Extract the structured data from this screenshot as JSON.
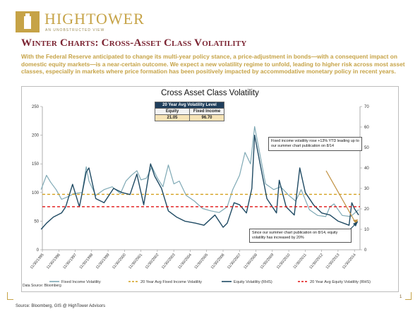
{
  "brand": {
    "name": "HIGHTOWER",
    "tagline": "AN UNOBSTRUCTED VIEW"
  },
  "page_title": "Winter Charts: Cross-Asset Class Volatility",
  "intro_text": "With the Federal Reserve anticipated to change its multi-year policy stance, a price-adjustment in bonds—with a consequent impact on domestic equity markets—is a near-certain outcome. We expect a new volatility regime to unfold, leading to higher risk across most asset classes, especially in markets where price formation has been positively impacted by accommodative monetary policy in recent years.",
  "volatility_table": {
    "header": "20 Year Avg Volatility Level",
    "col1": "Equity",
    "col2": "Fixed Income",
    "val1": "21.05",
    "val2": "96.70"
  },
  "annotations": {
    "fixed_income_note": "Fixed income volatility rose +13% YTD leading up to our summer chart publication on 8/14",
    "equity_note": "Since our summer chart publication on 8/14, equity volatility has increased by 20%"
  },
  "data_source": "Data Source: Bloomberg",
  "footer_source": "Source: Bloomberg, GIS @ HighTower Advisors",
  "page_number": "1",
  "colors": {
    "gold": "#c6a347",
    "burgundy": "#7a2230",
    "fixed_income": "#7fa9b5",
    "equity": "#1f4a63",
    "fi_avg": "#d4a01e",
    "eq_avg": "#e01010"
  },
  "chart_data": {
    "type": "line",
    "title": "Cross Asset Class Volatility",
    "x": [
      "11/30/1995",
      "11/30/1996",
      "11/30/1997",
      "11/30/1998",
      "11/30/1999",
      "11/30/2000",
      "11/30/2001",
      "11/30/2002",
      "11/30/2003",
      "11/30/2004",
      "11/30/2005",
      "11/30/2006",
      "11/30/2007",
      "11/30/2008",
      "11/30/2009",
      "11/30/2010",
      "11/30/2011",
      "11/30/2012",
      "11/30/2013",
      "11/30/2014"
    ],
    "x_extent": [
      "1995-11-30",
      "2015-03-31"
    ],
    "y_left": {
      "ticks": [
        0,
        50,
        100,
        150,
        200,
        250
      ],
      "range": [
        0,
        250
      ]
    },
    "y_right": {
      "ticks": [
        0,
        10,
        20,
        30,
        40,
        50,
        60,
        70
      ],
      "range": [
        0,
        70
      ]
    },
    "grid": false,
    "legend_position": "bottom",
    "series": [
      {
        "name": "Fixed Income Volatility",
        "axis": "left",
        "style": "solid",
        "points": [
          [
            "1995-11",
            105
          ],
          [
            "1996-03",
            130
          ],
          [
            "1996-06",
            118
          ],
          [
            "1996-10",
            105
          ],
          [
            "1997-02",
            88
          ],
          [
            "1997-06",
            92
          ],
          [
            "1997-11",
            98
          ],
          [
            "1998-05",
            100
          ],
          [
            "1998-08",
            145
          ],
          [
            "1998-10",
            120
          ],
          [
            "1999-03",
            95
          ],
          [
            "1999-09",
            105
          ],
          [
            "2000-03",
            110
          ],
          [
            "2000-09",
            98
          ],
          [
            "2001-01",
            120
          ],
          [
            "2001-05",
            130
          ],
          [
            "2001-09",
            138
          ],
          [
            "2001-12",
            122
          ],
          [
            "2002-04",
            125
          ],
          [
            "2002-08",
            145
          ],
          [
            "2002-12",
            125
          ],
          [
            "2003-04",
            110
          ],
          [
            "2003-08",
            148
          ],
          [
            "2003-12",
            115
          ],
          [
            "2004-04",
            120
          ],
          [
            "2004-09",
            95
          ],
          [
            "2005-03",
            85
          ],
          [
            "2005-09",
            72
          ],
          [
            "2006-03",
            68
          ],
          [
            "2006-09",
            65
          ],
          [
            "2007-03",
            75
          ],
          [
            "2007-07",
            105
          ],
          [
            "2007-12",
            130
          ],
          [
            "2008-04",
            170
          ],
          [
            "2008-08",
            150
          ],
          [
            "2008-11",
            215
          ],
          [
            "2009-03",
            165
          ],
          [
            "2009-07",
            115
          ],
          [
            "2010-01",
            105
          ],
          [
            "2010-06",
            110
          ],
          [
            "2010-12",
            95
          ],
          [
            "2011-05",
            85
          ],
          [
            "2011-09",
            105
          ],
          [
            "2012-03",
            70
          ],
          [
            "2012-09",
            60
          ],
          [
            "2013-03",
            58
          ],
          [
            "2013-06",
            75
          ],
          [
            "2013-09",
            80
          ],
          [
            "2014-03",
            60
          ],
          [
            "2014-09",
            58
          ],
          [
            "2015-03",
            70
          ]
        ]
      },
      {
        "name": "20 Year Avg Fixed Income Volatility",
        "axis": "left",
        "style": "dashed",
        "constant": 96.7
      },
      {
        "name": "Equity Volatility (RHS)",
        "axis": "right",
        "style": "solid",
        "points": [
          [
            "1995-11",
            10
          ],
          [
            "1996-03",
            13
          ],
          [
            "1996-08",
            16
          ],
          [
            "1997-02",
            18
          ],
          [
            "1997-05",
            21
          ],
          [
            "1997-10",
            32
          ],
          [
            "1998-03",
            21
          ],
          [
            "1998-08",
            38
          ],
          [
            "1998-10",
            40
          ],
          [
            "1999-03",
            25
          ],
          [
            "1999-09",
            23
          ],
          [
            "2000-04",
            30
          ],
          [
            "2000-10",
            28
          ],
          [
            "2001-04",
            27
          ],
          [
            "2001-09",
            37
          ],
          [
            "2002-02",
            22
          ],
          [
            "2002-07",
            42
          ],
          [
            "2002-10",
            36
          ],
          [
            "2003-03",
            30
          ],
          [
            "2003-08",
            19
          ],
          [
            "2004-02",
            16
          ],
          [
            "2004-08",
            14
          ],
          [
            "2005-04",
            13
          ],
          [
            "2005-10",
            12
          ],
          [
            "2006-06",
            17
          ],
          [
            "2006-12",
            11
          ],
          [
            "2007-03",
            13
          ],
          [
            "2007-08",
            23
          ],
          [
            "2007-12",
            22
          ],
          [
            "2008-05",
            18
          ],
          [
            "2008-09",
            30
          ],
          [
            "2008-11",
            56
          ],
          [
            "2009-03",
            42
          ],
          [
            "2009-08",
            25
          ],
          [
            "2010-03",
            18
          ],
          [
            "2010-05",
            34
          ],
          [
            "2010-10",
            21
          ],
          [
            "2011-04",
            17
          ],
          [
            "2011-08",
            40
          ],
          [
            "2011-12",
            28
          ],
          [
            "2012-06",
            22
          ],
          [
            "2012-12",
            18
          ],
          [
            "2013-06",
            17
          ],
          [
            "2013-12",
            14
          ],
          [
            "2014-04",
            13
          ],
          [
            "2014-08",
            12
          ],
          [
            "2014-10",
            23
          ],
          [
            "2014-12",
            20
          ],
          [
            "2015-03",
            17
          ]
        ]
      },
      {
        "name": "20 Year Avg Equity Volatility (RHS)",
        "axis": "right",
        "style": "dashed",
        "constant": 21.05
      }
    ]
  }
}
